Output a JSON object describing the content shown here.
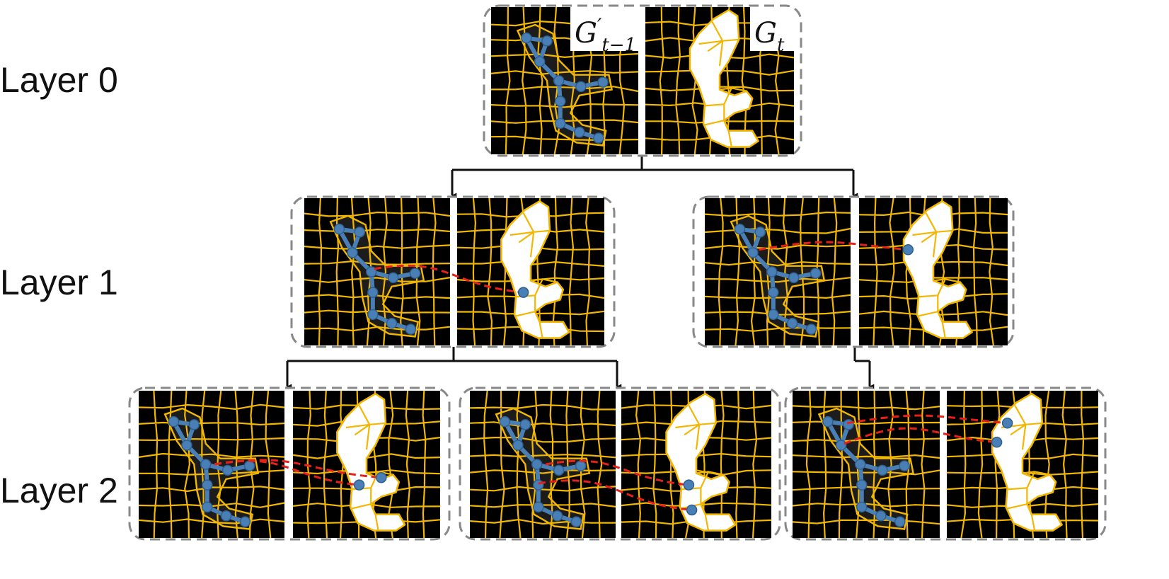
{
  "layers": [
    {
      "label": "Layer 0"
    },
    {
      "label": "Layer 1"
    },
    {
      "label": "Layer 2"
    }
  ],
  "panel_tags": {
    "previous": {
      "base": "G",
      "prime": "′",
      "subscript": "t−1"
    },
    "current": {
      "base": "G",
      "subscript": "t"
    }
  },
  "colors": {
    "background": "#ffffff",
    "image_background": "#000000",
    "grid_lines": "#f2b705",
    "cell_fill": "#ffffff",
    "graph_nodes": "#4a7fb5",
    "graph_edges": "#4a7fb5",
    "match_links": "#e8201a",
    "panel_border": "#888888",
    "tree_arrows": "#111111"
  },
  "tree": {
    "root": "layer0",
    "children": {
      "layer0": [
        "layer1-left",
        "layer1-right"
      ],
      "layer1-left": [
        "layer2-left",
        "layer2-middle"
      ],
      "layer1-right": [
        "layer2-right"
      ]
    }
  },
  "icons": {
    "graph_node": "circle",
    "match_link": "dashed-curve",
    "tree_edge": "arrow-down"
  }
}
